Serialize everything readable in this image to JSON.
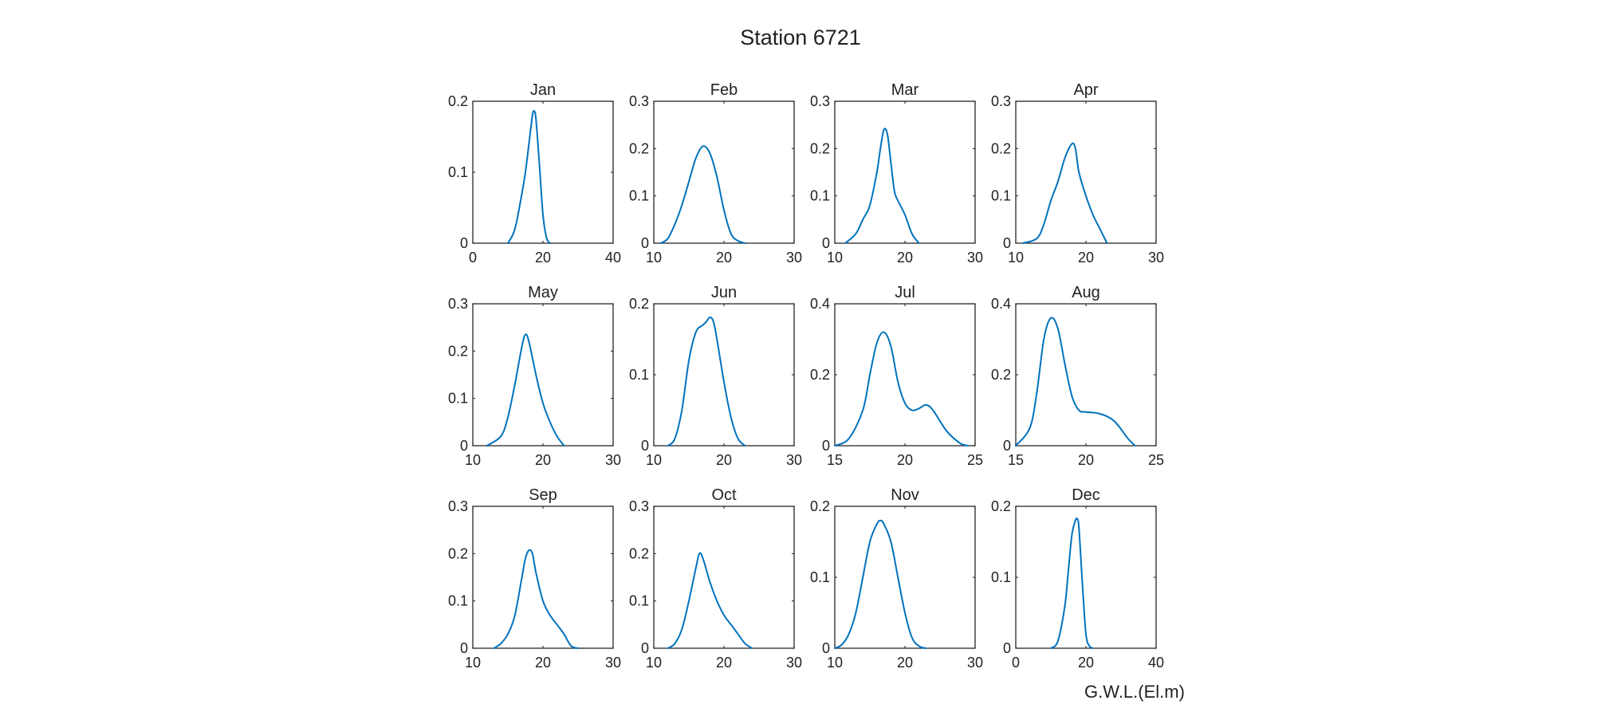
{
  "figure": {
    "title": "Station 6721",
    "xlabel": "G.W.L.(El.m)",
    "line_color": "#0072BD",
    "axes_color": "#262626"
  },
  "chart_data": [
    {
      "type": "line",
      "title": "Jan",
      "xlim": [
        0,
        40
      ],
      "xticks": [
        0,
        20,
        40
      ],
      "ylim": [
        0,
        0.2
      ],
      "yticks": [
        0,
        0.1,
        0.2
      ],
      "x": [
        10,
        12,
        14,
        15,
        16,
        17,
        17.5,
        18,
        19,
        20,
        21,
        22
      ],
      "y": [
        0,
        0.02,
        0.07,
        0.1,
        0.14,
        0.18,
        0.186,
        0.175,
        0.11,
        0.04,
        0.008,
        0
      ]
    },
    {
      "type": "line",
      "title": "Feb",
      "xlim": [
        10,
        30
      ],
      "xticks": [
        10,
        20,
        30
      ],
      "ylim": [
        0,
        0.3
      ],
      "yticks": [
        0,
        0.1,
        0.2,
        0.3
      ],
      "x": [
        11,
        12,
        13,
        14,
        15,
        16,
        17,
        18,
        19,
        20,
        21,
        22,
        23
      ],
      "y": [
        0,
        0.01,
        0.04,
        0.08,
        0.13,
        0.18,
        0.205,
        0.19,
        0.14,
        0.07,
        0.02,
        0.005,
        0
      ]
    },
    {
      "type": "line",
      "title": "Mar",
      "xlim": [
        10,
        30
      ],
      "xticks": [
        10,
        20,
        30
      ],
      "ylim": [
        0,
        0.3
      ],
      "yticks": [
        0,
        0.1,
        0.2,
        0.3
      ],
      "x": [
        11.5,
        13,
        14,
        15,
        16,
        16.5,
        17,
        17.5,
        18,
        18.5,
        19,
        20,
        21,
        22
      ],
      "y": [
        0,
        0.02,
        0.05,
        0.08,
        0.15,
        0.2,
        0.24,
        0.23,
        0.17,
        0.11,
        0.09,
        0.06,
        0.02,
        0
      ]
    },
    {
      "type": "line",
      "title": "Apr",
      "xlim": [
        10,
        30
      ],
      "xticks": [
        10,
        20,
        30
      ],
      "ylim": [
        0,
        0.3
      ],
      "yticks": [
        0,
        0.1,
        0.2,
        0.3
      ],
      "x": [
        11,
        13,
        14,
        15,
        16,
        17,
        18,
        18.5,
        19,
        20,
        21,
        22,
        23
      ],
      "y": [
        0,
        0.01,
        0.04,
        0.09,
        0.13,
        0.18,
        0.21,
        0.2,
        0.15,
        0.1,
        0.06,
        0.03,
        0
      ]
    },
    {
      "type": "line",
      "title": "May",
      "xlim": [
        10,
        30
      ],
      "xticks": [
        10,
        20,
        30
      ],
      "ylim": [
        0,
        0.3
      ],
      "yticks": [
        0,
        0.1,
        0.2,
        0.3
      ],
      "x": [
        12,
        14,
        15,
        16,
        17,
        17.5,
        18,
        19,
        20,
        21,
        22,
        23
      ],
      "y": [
        0,
        0.02,
        0.06,
        0.13,
        0.21,
        0.235,
        0.22,
        0.15,
        0.09,
        0.05,
        0.02,
        0
      ]
    },
    {
      "type": "line",
      "title": "Jun",
      "xlim": [
        10,
        30
      ],
      "xticks": [
        10,
        20,
        30
      ],
      "ylim": [
        0,
        0.2
      ],
      "yticks": [
        0,
        0.1,
        0.2
      ],
      "x": [
        12,
        13,
        14,
        15,
        16,
        17,
        17.5,
        18,
        18.5,
        19,
        20,
        21,
        22,
        23
      ],
      "y": [
        0,
        0.01,
        0.05,
        0.12,
        0.16,
        0.17,
        0.175,
        0.181,
        0.175,
        0.15,
        0.09,
        0.04,
        0.01,
        0
      ]
    },
    {
      "type": "line",
      "title": "Jul",
      "xlim": [
        15,
        25
      ],
      "xticks": [
        15,
        20,
        25
      ],
      "ylim": [
        0,
        0.4
      ],
      "yticks": [
        0,
        0.2,
        0.4
      ],
      "x": [
        15,
        16,
        17,
        17.5,
        18,
        18.5,
        19,
        19.5,
        20,
        20.5,
        21,
        21.5,
        22,
        23,
        24,
        24.5
      ],
      "y": [
        0,
        0.02,
        0.1,
        0.2,
        0.29,
        0.32,
        0.28,
        0.18,
        0.12,
        0.1,
        0.105,
        0.115,
        0.1,
        0.04,
        0.005,
        0
      ]
    },
    {
      "type": "line",
      "title": "Aug",
      "xlim": [
        15,
        25
      ],
      "xticks": [
        15,
        20,
        25
      ],
      "ylim": [
        0,
        0.4
      ],
      "yticks": [
        0,
        0.2,
        0.4
      ],
      "x": [
        15,
        16,
        16.5,
        17,
        17.5,
        18,
        18.5,
        19,
        19.5,
        20,
        21,
        22,
        23,
        23.5
      ],
      "y": [
        0,
        0.05,
        0.15,
        0.3,
        0.36,
        0.33,
        0.23,
        0.14,
        0.1,
        0.095,
        0.09,
        0.07,
        0.02,
        0
      ]
    },
    {
      "type": "line",
      "title": "Sep",
      "xlim": [
        10,
        30
      ],
      "xticks": [
        10,
        20,
        30
      ],
      "ylim": [
        0,
        0.3
      ],
      "yticks": [
        0,
        0.1,
        0.2,
        0.3
      ],
      "x": [
        13,
        14,
        15,
        16,
        17,
        17.5,
        18,
        18.5,
        19,
        20,
        21,
        22,
        23,
        24,
        25
      ],
      "y": [
        0,
        0.01,
        0.03,
        0.07,
        0.15,
        0.19,
        0.207,
        0.2,
        0.16,
        0.1,
        0.07,
        0.05,
        0.03,
        0.005,
        0
      ]
    },
    {
      "type": "line",
      "title": "Oct",
      "xlim": [
        10,
        30
      ],
      "xticks": [
        10,
        20,
        30
      ],
      "ylim": [
        0,
        0.3
      ],
      "yticks": [
        0,
        0.1,
        0.2,
        0.3
      ],
      "x": [
        12,
        13,
        14,
        15,
        16,
        16.5,
        17,
        18,
        19,
        20,
        21,
        22,
        23,
        24
      ],
      "y": [
        0,
        0.01,
        0.04,
        0.1,
        0.17,
        0.2,
        0.19,
        0.14,
        0.1,
        0.07,
        0.05,
        0.03,
        0.01,
        0
      ]
    },
    {
      "type": "line",
      "title": "Nov",
      "xlim": [
        10,
        30
      ],
      "xticks": [
        10,
        20,
        30
      ],
      "ylim": [
        0,
        0.2
      ],
      "yticks": [
        0,
        0.1,
        0.2
      ],
      "x": [
        10,
        11,
        12,
        13,
        14,
        15,
        16,
        16.5,
        17,
        18,
        19,
        20,
        21,
        22,
        23
      ],
      "y": [
        0,
        0.005,
        0.02,
        0.05,
        0.1,
        0.15,
        0.175,
        0.18,
        0.175,
        0.15,
        0.1,
        0.05,
        0.015,
        0.003,
        0
      ]
    },
    {
      "type": "line",
      "title": "Dec",
      "xlim": [
        0,
        40
      ],
      "xticks": [
        0,
        20,
        40
      ],
      "ylim": [
        0,
        0.2
      ],
      "yticks": [
        0,
        0.1,
        0.2
      ],
      "x": [
        10,
        12,
        14,
        15,
        16,
        17,
        17.5,
        18,
        19,
        20,
        21,
        22
      ],
      "y": [
        0,
        0.01,
        0.06,
        0.11,
        0.16,
        0.18,
        0.182,
        0.17,
        0.09,
        0.02,
        0.003,
        0
      ]
    }
  ]
}
